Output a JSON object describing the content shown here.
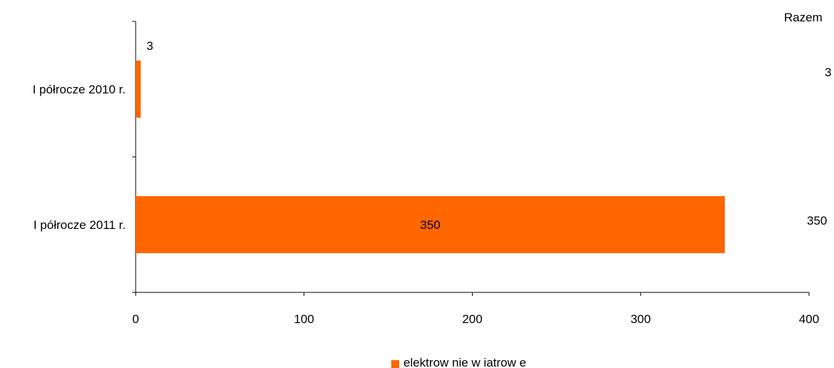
{
  "chart_data": {
    "type": "bar",
    "orientation": "horizontal",
    "categories": [
      "I półrocze 2010 r.",
      "I półrocze 2011 r."
    ],
    "series": [
      {
        "name": "elektrow nie w iatrow e",
        "values": [
          3,
          350
        ],
        "color": "#ff6600"
      }
    ],
    "data_labels": [
      "3",
      "350"
    ],
    "totals_header": "Razem",
    "totals": [
      "3",
      "350"
    ],
    "xlim": [
      0,
      400
    ],
    "xticks": [
      "0",
      "100",
      "200",
      "300",
      "400"
    ],
    "grid": false,
    "legend": "bottom"
  }
}
